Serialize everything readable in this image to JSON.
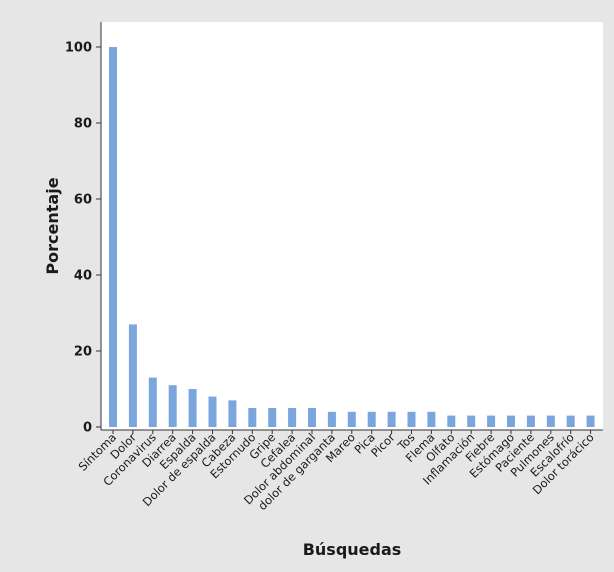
{
  "chart_data": {
    "type": "bar",
    "title": "",
    "xlabel": "Búsquedas",
    "ylabel": "Porcentaje",
    "ylim": [
      0,
      105
    ],
    "yticks": [
      0,
      20,
      40,
      60,
      80,
      100
    ],
    "grid": false,
    "bar_color": "#7aa6dd",
    "categories": [
      "Síntoma",
      "Dolor",
      "Coronavirus",
      "Diarrea",
      "Espalda",
      "Dolor de espalda",
      "Cabeza",
      "Estornudo",
      "Gripe",
      "Cefalea",
      "Dolor abdominal",
      "dolor de garganta",
      "Mareo",
      "Pica",
      "Picor",
      "Tos",
      "Flema",
      "Olfato",
      "Inflamación",
      "Fiebre",
      "Estómago",
      "Paciente",
      "Pulmones",
      "Escalofrío",
      "Dolor torácico"
    ],
    "values": [
      100,
      27,
      13,
      11,
      10,
      8,
      7,
      5,
      5,
      5,
      5,
      4,
      4,
      4,
      4,
      4,
      4,
      3,
      3,
      3,
      3,
      3,
      3,
      3,
      3
    ]
  }
}
